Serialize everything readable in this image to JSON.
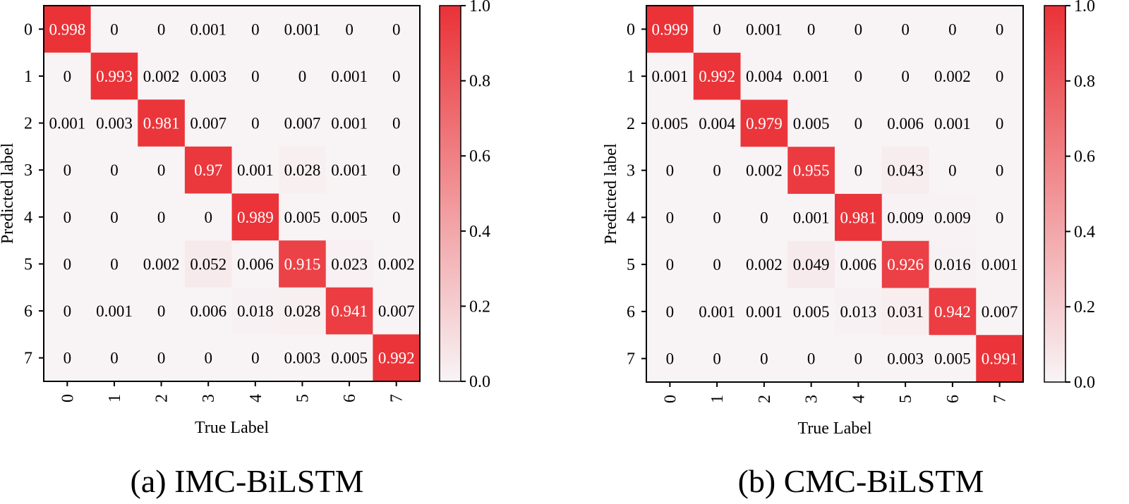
{
  "chart_data": [
    {
      "type": "heatmap",
      "title": "",
      "caption": "(a) IMC-BiLSTM",
      "xlabel": "True Label",
      "ylabel": "Predicted label",
      "categories": [
        "0",
        "1",
        "2",
        "3",
        "4",
        "5",
        "6",
        "7"
      ],
      "values": [
        [
          "0.998",
          "0",
          "0",
          "0.001",
          "0",
          "0.001",
          "0",
          "0"
        ],
        [
          "0",
          "0.993",
          "0.002",
          "0.003",
          "0",
          "0",
          "0.001",
          "0"
        ],
        [
          "0.001",
          "0.003",
          "0.981",
          "0.007",
          "0",
          "0.007",
          "0.001",
          "0"
        ],
        [
          "0",
          "0",
          "0",
          "0.97",
          "0.001",
          "0.028",
          "0.001",
          "0"
        ],
        [
          "0",
          "0",
          "0",
          "0",
          "0.989",
          "0.005",
          "0.005",
          "0"
        ],
        [
          "0",
          "0",
          "0.002",
          "0.052",
          "0.006",
          "0.915",
          "0.023",
          "0.002"
        ],
        [
          "0",
          "0.001",
          "0",
          "0.006",
          "0.018",
          "0.028",
          "0.941",
          "0.007"
        ],
        [
          "0",
          "0",
          "0",
          "0",
          "0",
          "0.003",
          "0.005",
          "0.992"
        ]
      ],
      "colorbar": {
        "range": [
          0,
          1
        ],
        "ticks": [
          "0.0",
          "0.2",
          "0.4",
          "0.6",
          "0.8",
          "1.0"
        ]
      }
    },
    {
      "type": "heatmap",
      "title": "",
      "caption": "(b) CMC-BiLSTM",
      "xlabel": "True Label",
      "ylabel": "Predicted label",
      "categories": [
        "0",
        "1",
        "2",
        "3",
        "4",
        "5",
        "6",
        "7"
      ],
      "values": [
        [
          "0.999",
          "0",
          "0.001",
          "0",
          "0",
          "0",
          "0",
          "0"
        ],
        [
          "0.001",
          "0.992",
          "0.004",
          "0.001",
          "0",
          "0",
          "0.002",
          "0"
        ],
        [
          "0.005",
          "0.004",
          "0.979",
          "0.005",
          "0",
          "0.006",
          "0.001",
          "0"
        ],
        [
          "0",
          "0",
          "0.002",
          "0.955",
          "0",
          "0.043",
          "0",
          "0"
        ],
        [
          "0",
          "0",
          "0",
          "0.001",
          "0.981",
          "0.009",
          "0.009",
          "0"
        ],
        [
          "0",
          "0",
          "0.002",
          "0.049",
          "0.006",
          "0.926",
          "0.016",
          "0.001"
        ],
        [
          "0",
          "0.001",
          "0.001",
          "0.005",
          "0.013",
          "0.031",
          "0.942",
          "0.007"
        ],
        [
          "0",
          "0",
          "0",
          "0",
          "0",
          "0.003",
          "0.005",
          "0.991"
        ]
      ],
      "colorbar": {
        "range": [
          0,
          1
        ],
        "ticks": [
          "0.0",
          "0.2",
          "0.4",
          "0.6",
          "0.8",
          "1.0"
        ]
      }
    }
  ],
  "colors": {
    "low": "#f8f4f6",
    "high": "#ea3237",
    "axis": "#000000"
  }
}
